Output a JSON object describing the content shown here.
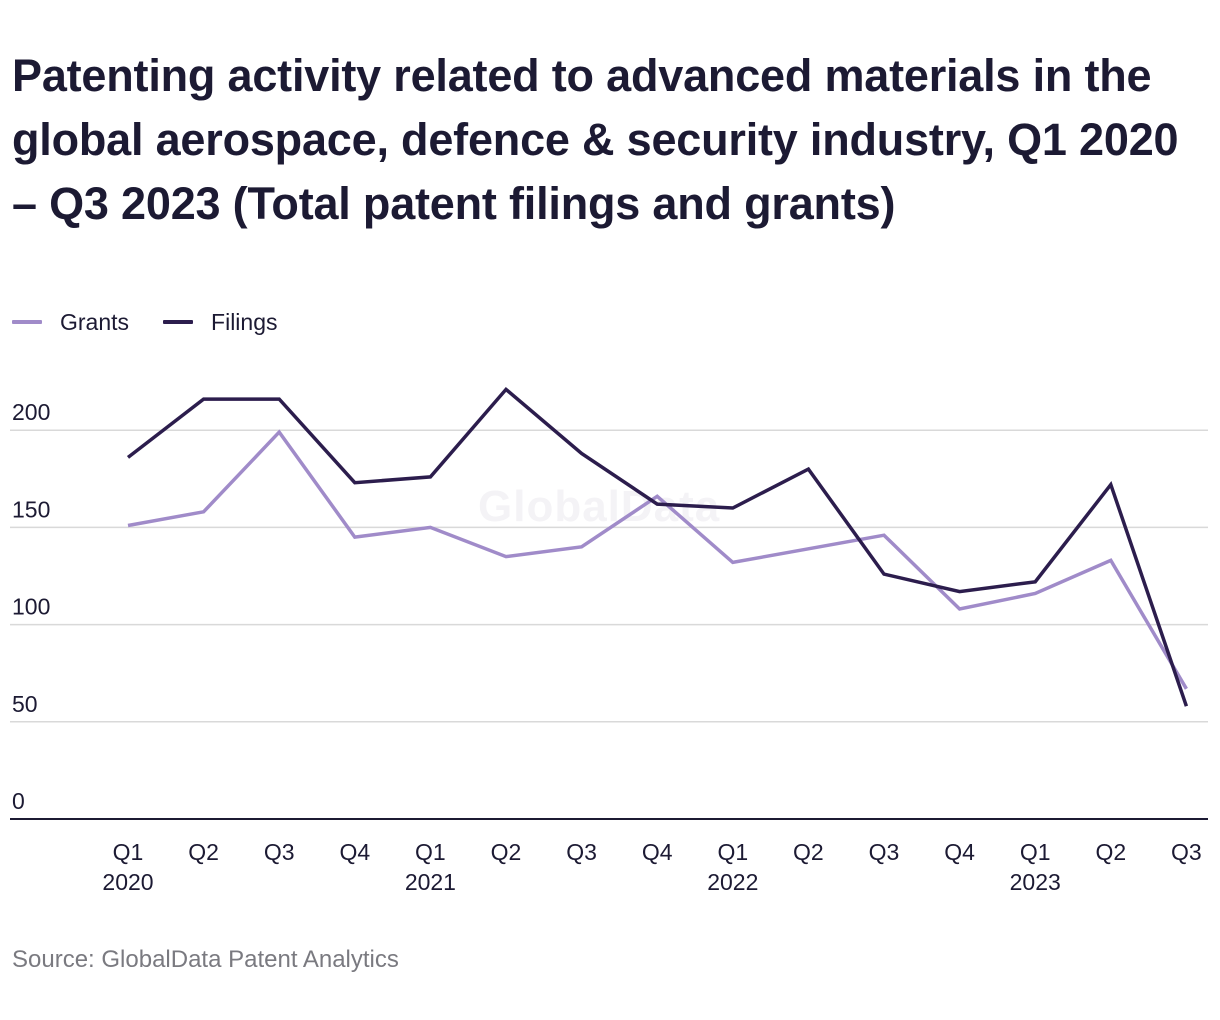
{
  "title": "Patenting activity related to advanced materials in the global aerospace, defence & security industry, Q1 2020 – Q3 2023 (Total patent filings and grants)",
  "watermark": "GlobalData",
  "source": "Source: GlobalData Patent Analytics",
  "colors": {
    "grants": "#a08bc9",
    "filings": "#2c1d4d",
    "grid": "#d9d9d9",
    "axis": "#1c1a33",
    "text": "#1c1a33"
  },
  "legend": [
    {
      "label": "Grants",
      "color": "#a08bc9"
    },
    {
      "label": "Filings",
      "color": "#2c1d4d"
    }
  ],
  "chart_data": {
    "type": "line",
    "x_quarters": [
      "Q1",
      "Q2",
      "Q3",
      "Q4",
      "Q1",
      "Q2",
      "Q3",
      "Q4",
      "Q1",
      "Q2",
      "Q3",
      "Q4",
      "Q1",
      "Q2",
      "Q3"
    ],
    "x_years": [
      "2020",
      "",
      "",
      "",
      "2021",
      "",
      "",
      "",
      "2022",
      "",
      "",
      "",
      "2023",
      "",
      ""
    ],
    "series": [
      {
        "name": "Grants",
        "color": "#a08bc9",
        "values": [
          151,
          158,
          199,
          145,
          150,
          135,
          140,
          166,
          132,
          139,
          146,
          108,
          116,
          133,
          67
        ]
      },
      {
        "name": "Filings",
        "color": "#2c1d4d",
        "values": [
          186,
          216,
          216,
          173,
          176,
          221,
          188,
          162,
          160,
          180,
          126,
          117,
          122,
          172,
          58
        ]
      }
    ],
    "y_ticks": [
      0,
      50,
      100,
      150,
      200
    ],
    "ylim": [
      0,
      230
    ],
    "grid": true,
    "legend_position": "top-left"
  }
}
